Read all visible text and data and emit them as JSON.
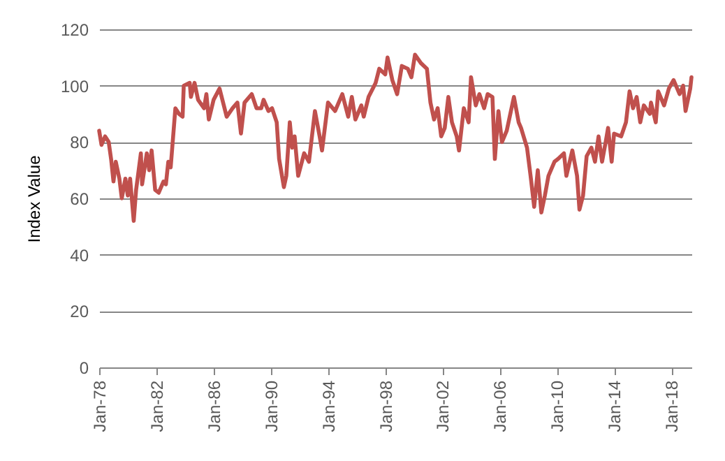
{
  "chart_data": {
    "type": "line",
    "ylabel": "Index Value",
    "color": "#c0504d",
    "grid": "y",
    "x": [
      "1978-01",
      "1978-03",
      "1978-06",
      "1978-09",
      "1978-11",
      "1979-01",
      "1979-03",
      "1979-06",
      "1979-08",
      "1979-11",
      "1980-01",
      "1980-03",
      "1980-06",
      "1980-08",
      "1980-12",
      "1981-01",
      "1981-05",
      "1981-07",
      "1981-09",
      "1981-12",
      "1982-03",
      "1982-07",
      "1982-09",
      "1982-11",
      "1983-01",
      "1983-05",
      "1983-08",
      "1983-11",
      "1983-12",
      "1984-05",
      "1984-06",
      "1984-09",
      "1984-12",
      "1985-05",
      "1985-07",
      "1985-09",
      "1986-01",
      "1986-06",
      "1986-12",
      "1987-05",
      "1987-09",
      "1987-12",
      "1988-03",
      "1988-09",
      "1989-01",
      "1989-05",
      "1989-07",
      "1989-11",
      "1990-02",
      "1990-06",
      "1990-08",
      "1990-12",
      "1991-02",
      "1991-05",
      "1991-07",
      "1991-09",
      "1991-12",
      "1992-05",
      "1992-09",
      "1993-02",
      "1993-06",
      "1993-08",
      "1994-01",
      "1994-07",
      "1995-01",
      "1995-06",
      "1995-09",
      "1995-12",
      "1996-05",
      "1996-07",
      "1996-11",
      "1997-05",
      "1997-08",
      "1998-01",
      "1998-03",
      "1998-07",
      "1998-11",
      "1999-03",
      "1999-08",
      "1999-11",
      "2000-02",
      "2000-07",
      "2000-12",
      "2001-03",
      "2001-06",
      "2001-09",
      "2001-12",
      "2002-03",
      "2002-06",
      "2002-09",
      "2003-01",
      "2003-03",
      "2003-07",
      "2003-11",
      "2004-01",
      "2004-05",
      "2004-08",
      "2004-12",
      "2005-03",
      "2005-07",
      "2005-09",
      "2005-12",
      "2006-03",
      "2006-07",
      "2006-12",
      "2007-01",
      "2007-05",
      "2007-07",
      "2007-12",
      "2008-03",
      "2008-06",
      "2008-09",
      "2008-12",
      "2009-03",
      "2009-06",
      "2009-11",
      "2010-02",
      "2010-07",
      "2010-09",
      "2011-02",
      "2011-06",
      "2011-08",
      "2011-11",
      "2012-02",
      "2012-06",
      "2012-09",
      "2012-12",
      "2013-03",
      "2013-06",
      "2013-08",
      "2013-11",
      "2014-01",
      "2014-07",
      "2014-11",
      "2015-02",
      "2015-05",
      "2015-08",
      "2015-11",
      "2016-02",
      "2016-07",
      "2016-08",
      "2016-12",
      "2017-02",
      "2017-07",
      "2017-11",
      "2018-03",
      "2018-08",
      "2018-11",
      "2019-01",
      "2019-05",
      "2019-06"
    ],
    "values": [
      84,
      79,
      82,
      80,
      74,
      66,
      73,
      67,
      60,
      67,
      61,
      67,
      52,
      63,
      76,
      65,
      76,
      70,
      77,
      63,
      62,
      66,
      65,
      73,
      71,
      92,
      90,
      89,
      100,
      101,
      96,
      101,
      95,
      92,
      97,
      88,
      95,
      99,
      89,
      92,
      94,
      83,
      94,
      97,
      92,
      92,
      95,
      91,
      92,
      87,
      74,
      64,
      68,
      87,
      78,
      82,
      68,
      76,
      73,
      91,
      82,
      77,
      94,
      91,
      97,
      89,
      96,
      88,
      93,
      89,
      96,
      101,
      106,
      104,
      110,
      102,
      97,
      107,
      106,
      103,
      111,
      108,
      106,
      94,
      88,
      92,
      82,
      85,
      96,
      87,
      82,
      77,
      92,
      87,
      103,
      93,
      97,
      92,
      97,
      96,
      74,
      91,
      80,
      84,
      94,
      96,
      87,
      85,
      78,
      68,
      57,
      70,
      55,
      61,
      68,
      73,
      74,
      76,
      68,
      77,
      68,
      56,
      61,
      75,
      78,
      73,
      82,
      73,
      80,
      85,
      73,
      83,
      82,
      87,
      98,
      92,
      96,
      87,
      93,
      90,
      94,
      87,
      98,
      93,
      99,
      102,
      97,
      100,
      91,
      99,
      103
    ],
    "xlim": [
      "1978-01",
      "2019-06"
    ],
    "xticks": [
      {
        "value": "1978-01",
        "label": "Jan-78"
      },
      {
        "value": "1982-01",
        "label": "Jan-82"
      },
      {
        "value": "1986-01",
        "label": "Jan-86"
      },
      {
        "value": "1990-01",
        "label": "Jan-90"
      },
      {
        "value": "1994-01",
        "label": "Jan-94"
      },
      {
        "value": "1998-01",
        "label": "Jan-98"
      },
      {
        "value": "2002-01",
        "label": "Jan-02"
      },
      {
        "value": "2006-01",
        "label": "Jan-06"
      },
      {
        "value": "2010-01",
        "label": "Jan-10"
      },
      {
        "value": "2014-01",
        "label": "Jan-14"
      },
      {
        "value": "2018-01",
        "label": "Jan-18"
      }
    ],
    "ylim": [
      0,
      120
    ],
    "yticks": [
      0,
      20,
      40,
      60,
      80,
      100,
      120
    ]
  }
}
